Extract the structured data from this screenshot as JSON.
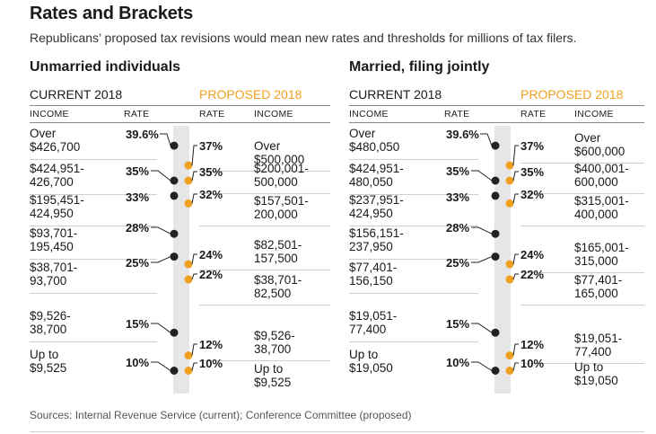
{
  "title": "Rates and Brackets",
  "subtitle": "Republicans’ proposed tax revisions would mean new rates and thresholds for millions of tax filers.",
  "source": "Sources: Internal Revenue Service (current); Conference Committee (proposed)",
  "colors": {
    "current": "#222222",
    "proposed": "#f0a021",
    "bar": "#e6e6e6"
  },
  "labels": {
    "current": "CURRENT 2018",
    "proposed": "PROPOSED 2018",
    "income": "INCOME",
    "rate": "RATE"
  },
  "chart_data": [
    {
      "type": "table",
      "panel": "Unmarried individuals",
      "current": [
        {
          "income": [
            "Over",
            "$426,700"
          ],
          "rate": "39.6%",
          "value": 39.6
        },
        {
          "income": [
            "$424,951-",
            "426,700"
          ],
          "rate": "35%",
          "value": 35
        },
        {
          "income": [
            "$195,451-",
            "424,950"
          ],
          "rate": "33%",
          "value": 33
        },
        {
          "income": [
            "$93,701-",
            "195,450"
          ],
          "rate": "28%",
          "value": 28
        },
        {
          "income": [
            "$38,701-",
            "93,700"
          ],
          "rate": "25%",
          "value": 25
        },
        {
          "income": [
            "$9,526-",
            "38,700"
          ],
          "rate": "15%",
          "value": 15
        },
        {
          "income": [
            "Up to",
            "$9,525"
          ],
          "rate": "10%",
          "value": 10
        }
      ],
      "proposed": [
        {
          "income": [
            "Over",
            "$500,000"
          ],
          "rate": "37%",
          "value": 37
        },
        {
          "income": [
            "$200,001-",
            "500,000"
          ],
          "rate": "35%",
          "value": 35
        },
        {
          "income": [
            "$157,501-",
            "200,000"
          ],
          "rate": "32%",
          "value": 32
        },
        {
          "income": [
            "$82,501-",
            "157,500"
          ],
          "rate": "24%",
          "value": 24
        },
        {
          "income": [
            "$38,701-",
            "82,500"
          ],
          "rate": "22%",
          "value": 22
        },
        {
          "income": [
            "$9,526-",
            "38,700"
          ],
          "rate": "12%",
          "value": 12
        },
        {
          "income": [
            "Up to",
            "$9,525"
          ],
          "rate": "10%",
          "value": 10
        }
      ]
    },
    {
      "type": "table",
      "panel": "Married, filing jointly",
      "current": [
        {
          "income": [
            "Over",
            "$480,050"
          ],
          "rate": "39.6%",
          "value": 39.6
        },
        {
          "income": [
            "$424,951-",
            "480,050"
          ],
          "rate": "35%",
          "value": 35
        },
        {
          "income": [
            "$237,951-",
            "424,950"
          ],
          "rate": "33%",
          "value": 33
        },
        {
          "income": [
            "$156,151-",
            "237,950"
          ],
          "rate": "28%",
          "value": 28
        },
        {
          "income": [
            "$77,401-",
            "156,150"
          ],
          "rate": "25%",
          "value": 25
        },
        {
          "income": [
            "$19,051-",
            "77,400"
          ],
          "rate": "15%",
          "value": 15
        },
        {
          "income": [
            "Up to",
            "$19,050"
          ],
          "rate": "10%",
          "value": 10
        }
      ],
      "proposed": [
        {
          "income": [
            "Over",
            "$600,000"
          ],
          "rate": "37%",
          "value": 37
        },
        {
          "income": [
            "$400,001-",
            "600,000"
          ],
          "rate": "35%",
          "value": 35
        },
        {
          "income": [
            "$315,001-",
            "400,000"
          ],
          "rate": "32%",
          "value": 32
        },
        {
          "income": [
            "$165,001-",
            "315,000"
          ],
          "rate": "24%",
          "value": 24
        },
        {
          "income": [
            "$77,401-",
            "165,000"
          ],
          "rate": "22%",
          "value": 22
        },
        {
          "income": [
            "$19,051-",
            "77,400"
          ],
          "rate": "12%",
          "value": 12
        },
        {
          "income": [
            "Up to",
            "$19,050"
          ],
          "rate": "10%",
          "value": 10
        }
      ]
    }
  ]
}
